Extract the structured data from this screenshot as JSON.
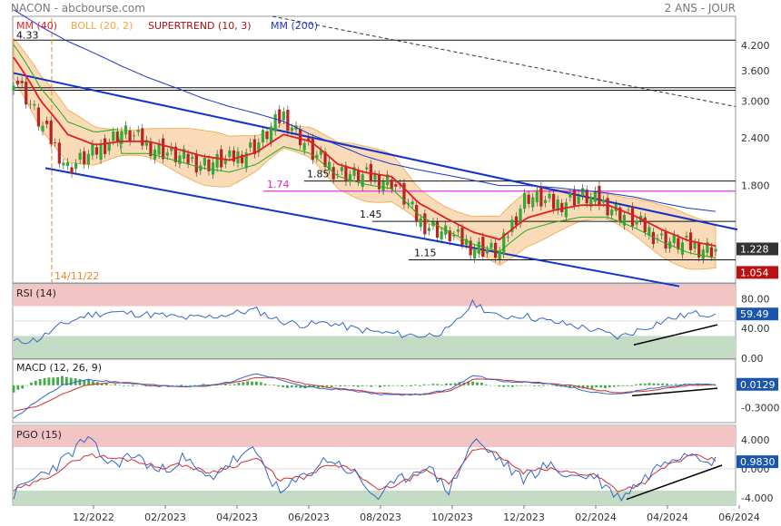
{
  "header": {
    "title": "NACON - abcbourse.com",
    "period": "2 ANS - JOUR"
  },
  "colors": {
    "candle_up": "#33aa33",
    "candle_down": "#bb2222",
    "mm40": "#e02020",
    "boll": "#f2a640",
    "boll_fill": "#f7cfa0",
    "supertrend_up": "#22aa22",
    "supertrend_down": "#aa1111",
    "mm200": "#2233cc",
    "channel": "#1133cc",
    "rsi_line": "#3366cc",
    "macd_line": "#3366cc",
    "macd_signal": "#d03030",
    "macd_hist": "#44aa44",
    "pgo_line": "#3366cc",
    "pgo_signal": "#d03030",
    "level_174": "#dd22dd",
    "date_marker": "#e88a22",
    "price_badge": "#333333",
    "supertrend_badge": "#bb1111",
    "indicator_badge": "#1a56b0",
    "overbought": "#f3c4c4",
    "oversold": "#c4dcc4"
  },
  "chart_data": [
    {
      "type": "line",
      "name": "price",
      "legend": [
        {
          "label": "MM (40)",
          "color": "#e02020"
        },
        {
          "label": "BOLL (20, 2)",
          "color": "#f2a640"
        },
        {
          "label": "SUPERTREND (10, 3)",
          "color": "#aa1111"
        },
        {
          "label": "MM (200)",
          "color": "#2233cc"
        }
      ],
      "scale": "log",
      "ylim": [
        1.0,
        5.0
      ],
      "y_ticks": [
        4.2,
        3.6,
        3.0,
        2.4,
        1.8
      ],
      "x_labels": [
        "12/2022",
        "02/2023",
        "04/2023",
        "06/2023",
        "08/2023",
        "10/2023",
        "12/2023",
        "02/2024",
        "04/2024",
        "06/2024"
      ],
      "close": [
        3.5,
        2.6,
        2.0,
        2.2,
        2.5,
        2.3,
        2.15,
        2.05,
        2.1,
        2.3,
        2.75,
        2.2,
        1.95,
        1.9,
        1.85,
        1.45,
        1.35,
        1.25,
        1.2,
        1.7,
        1.6,
        1.7,
        1.6,
        1.45,
        1.3,
        1.25,
        1.228
      ],
      "mm40": [
        3.9,
        3.0,
        2.45,
        2.3,
        2.35,
        2.35,
        2.25,
        2.15,
        2.1,
        2.2,
        2.45,
        2.35,
        2.05,
        1.95,
        1.9,
        1.62,
        1.48,
        1.36,
        1.3,
        1.48,
        1.55,
        1.6,
        1.6,
        1.5,
        1.38,
        1.29,
        1.25
      ],
      "mm200": [
        5.2,
        4.7,
        4.3,
        4.0,
        3.7,
        3.45,
        3.25,
        3.05,
        2.9,
        2.78,
        2.65,
        2.45,
        2.3,
        2.15,
        2.05,
        1.98,
        1.92,
        1.86,
        1.8,
        1.8,
        1.78,
        1.75,
        1.72,
        1.68,
        1.62,
        1.57,
        1.54
      ],
      "supertrend_last": 1.054,
      "last_price": 1.228,
      "horizontal_levels": [
        4.33,
        3.25,
        3.2,
        1.85,
        1.45,
        1.15
      ],
      "level_labels": [
        {
          "value": 4.33,
          "label": "4.33"
        },
        {
          "value": 1.85,
          "label": "1.85"
        },
        {
          "value": 1.74,
          "label": "1.74"
        },
        {
          "value": 1.45,
          "label": "1.45"
        },
        {
          "value": 1.15,
          "label": "1.15"
        }
      ],
      "date_marker": "14/11/22",
      "price_badge": "1.228",
      "supertrend_badge": "1.054"
    },
    {
      "type": "line",
      "name": "rsi",
      "legend": "RSI (14)",
      "ylim": [
        0,
        100
      ],
      "y_ticks": [
        80,
        40,
        0
      ],
      "zones": {
        "overbought": 70,
        "oversold": 30
      },
      "values": [
        22,
        25,
        45,
        58,
        62,
        60,
        58,
        54,
        55,
        60,
        65,
        50,
        45,
        48,
        40,
        35,
        32,
        30,
        38,
        75,
        55,
        58,
        50,
        45,
        38,
        28,
        40,
        52,
        60,
        59.49
      ],
      "last_value": "59.49"
    },
    {
      "type": "line",
      "name": "macd",
      "legend": "MACD (12, 26, 9)",
      "ylim": [
        -0.5,
        0.35
      ],
      "y_ticks": [
        0.0,
        -0.3
      ],
      "macd": [
        -0.45,
        -0.2,
        0.0,
        0.08,
        0.05,
        0.02,
        -0.01,
        -0.02,
        0.0,
        0.05,
        0.15,
        0.08,
        -0.02,
        -0.05,
        -0.07,
        -0.12,
        -0.13,
        -0.12,
        -0.05,
        0.14,
        0.06,
        0.04,
        0.02,
        -0.02,
        -0.1,
        -0.12,
        -0.06,
        -0.02,
        0.01,
        0.0129
      ],
      "signal": [
        -0.35,
        -0.28,
        -0.12,
        0.0,
        0.04,
        0.03,
        0.0,
        -0.02,
        -0.01,
        0.03,
        0.1,
        0.1,
        0.02,
        -0.03,
        -0.06,
        -0.1,
        -0.12,
        -0.12,
        -0.08,
        0.08,
        0.08,
        0.05,
        0.03,
        0.0,
        -0.06,
        -0.1,
        -0.08,
        -0.04,
        0.0,
        0.01
      ],
      "last_value": "0.0129"
    },
    {
      "type": "line",
      "name": "pgo",
      "legend": "PGO (15)",
      "ylim": [
        -5,
        6
      ],
      "y_ticks": [
        4.0,
        0,
        -4.0
      ],
      "zones": {
        "overbought": 3.0,
        "oversold": -3.0
      },
      "values": [
        -3.5,
        -1,
        1,
        4.2,
        0.5,
        2,
        -0.5,
        1.5,
        -1.5,
        1,
        2.5,
        -3.5,
        -1,
        1.5,
        -0.5,
        -4,
        -1.5,
        0.5,
        -3,
        4,
        1.5,
        -1.5,
        0.5,
        -1,
        -1,
        -4,
        -1.5,
        1.5,
        2.5,
        0.983
      ],
      "signal": [
        -3,
        -1.8,
        0,
        2,
        1.5,
        1.2,
        0.2,
        0.6,
        -0.5,
        0.3,
        1.5,
        -1.5,
        -1.2,
        0.5,
        0,
        -3,
        -2,
        -0.3,
        -2,
        3,
        2,
        -0.5,
        0,
        -0.5,
        -0.8,
        -3,
        -2,
        0.5,
        1.8,
        1.2
      ],
      "last_value": "0.9830"
    }
  ]
}
